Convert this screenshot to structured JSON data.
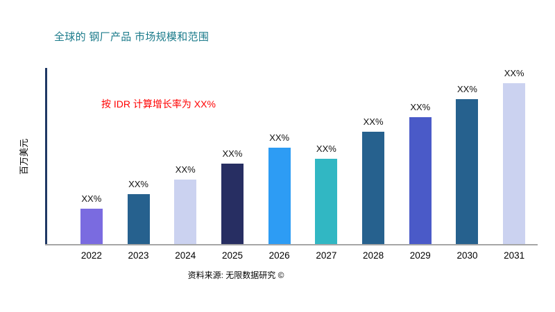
{
  "title": {
    "text": "全球的 钢厂产品 市场规模和范围",
    "color": "#1A7A8A"
  },
  "annotation": {
    "text": "按 IDR 计算增长率为 XX%",
    "color": "#FF0000"
  },
  "y_axis": {
    "label": "百万美元"
  },
  "footer": {
    "text": "资料来源: 无限数据研究 ©"
  },
  "chart_data": {
    "type": "bar",
    "title": "全球的 钢厂产品 市场规模和范围",
    "categories": [
      "2022",
      "2023",
      "2024",
      "2025",
      "2026",
      "2027",
      "2028",
      "2029",
      "2030",
      "2031"
    ],
    "values": [
      22,
      31,
      40,
      50,
      60,
      53,
      70,
      79,
      90,
      100
    ],
    "bar_labels": [
      "XX%",
      "XX%",
      "XX%",
      "XX%",
      "XX%",
      "XX%",
      "XX%",
      "XX%",
      "XX%",
      "XX%"
    ],
    "bar_colors": [
      "#7A6BE0",
      "#26618E",
      "#CBD2F0",
      "#272E62",
      "#2D9CF4",
      "#31B7C3",
      "#26618E",
      "#4A5AC8",
      "#26618E",
      "#CBD2F0"
    ],
    "xlabel": "",
    "ylabel": "百万美元",
    "ylim": [
      0,
      100
    ],
    "y_tick_labels": [],
    "grid": false,
    "legend": "none",
    "annotation": "按 IDR 计算增长率为 XX%",
    "source_note": "资料来源: 无限数据研究 ©",
    "axis_colors": {
      "y_axis_line": "#1F3864",
      "x_axis_line": "#A6A6A6"
    }
  }
}
